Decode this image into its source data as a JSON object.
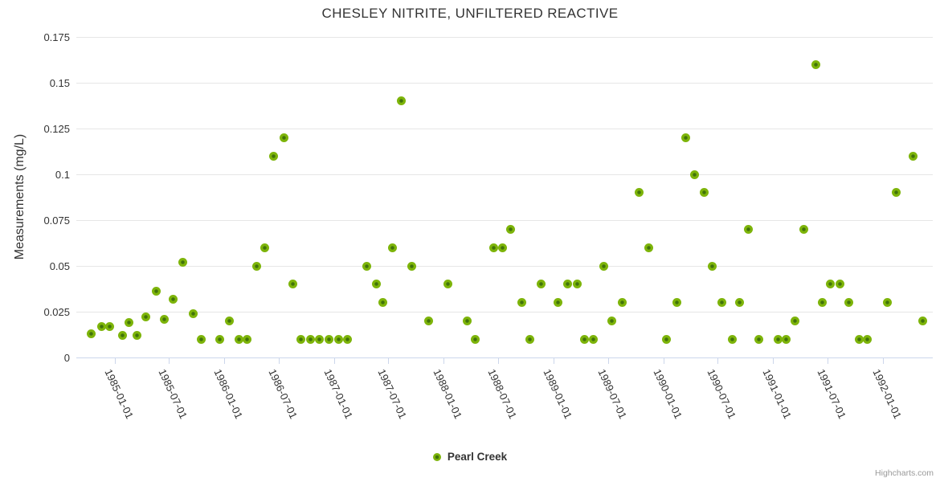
{
  "title": "CHESLEY NITRITE, UNFILTERED REACTIVE",
  "legend": {
    "label": "Pearl Creek"
  },
  "credits": "Highcharts.com",
  "y_axis": {
    "title": "Measurements (mg/L)",
    "tick_values": [
      0,
      0.025,
      0.05,
      0.075,
      0.1,
      0.125,
      0.15,
      0.175
    ],
    "tick_labels": [
      "0",
      "0.025",
      "0.05",
      "0.075",
      "0.1",
      "0.125",
      "0.15",
      "0.175"
    ]
  },
  "x_axis": {
    "tick_labels": [
      "1985-01-01",
      "1985-07-01",
      "1986-01-01",
      "1986-07-01",
      "1987-01-01",
      "1987-07-01",
      "1988-01-01",
      "1988-07-01",
      "1989-01-01",
      "1989-07-01",
      "1990-01-01",
      "1990-07-01",
      "1991-01-01",
      "1991-07-01",
      "1992-01-01"
    ]
  },
  "colors": {
    "marker_outer": "#7db40a",
    "marker_inner": "#41730a",
    "gridline": "#e6e6e6",
    "axis_line": "#ccd6eb",
    "title_text": "#333333",
    "credits_text": "#999999"
  },
  "chart_data": {
    "type": "scatter",
    "title": "CHESLEY NITRITE, UNFILTERED REACTIVE",
    "xlabel": "",
    "ylabel": "Measurements (mg/L)",
    "ylim": [
      0,
      0.175
    ],
    "xlim": [
      "1984-08-27",
      "1992-06-13"
    ],
    "x_ticks": [
      "1985-01-01",
      "1985-07-01",
      "1986-01-01",
      "1986-07-01",
      "1987-01-01",
      "1987-07-01",
      "1988-01-01",
      "1988-07-01",
      "1989-01-01",
      "1989-07-01",
      "1990-01-01",
      "1990-07-01",
      "1991-01-01",
      "1991-07-01",
      "1992-01-01"
    ],
    "y_ticks": [
      0,
      0.025,
      0.05,
      0.075,
      0.1,
      0.125,
      0.15,
      0.175
    ],
    "grid": true,
    "legend_position": "bottom",
    "series": [
      {
        "name": "Pearl Creek",
        "points": [
          [
            "1984-10-16",
            0.013
          ],
          [
            "1984-11-18",
            0.017
          ],
          [
            "1984-12-16",
            0.017
          ],
          [
            "1985-01-28",
            0.012
          ],
          [
            "1985-02-19",
            0.019
          ],
          [
            "1985-03-17",
            0.012
          ],
          [
            "1985-04-15",
            0.022
          ],
          [
            "1985-05-21",
            0.036
          ],
          [
            "1985-06-16",
            0.021
          ],
          [
            "1985-07-14",
            0.032
          ],
          [
            "1985-08-17",
            0.052
          ],
          [
            "1985-09-21",
            0.024
          ],
          [
            "1985-10-18",
            0.01
          ],
          [
            "1985-12-18",
            0.01
          ],
          [
            "1986-01-18",
            0.02
          ],
          [
            "1986-02-19",
            0.01
          ],
          [
            "1986-03-18",
            0.01
          ],
          [
            "1986-04-18",
            0.05
          ],
          [
            "1986-05-16",
            0.06
          ],
          [
            "1986-06-14",
            0.11
          ],
          [
            "1986-07-18",
            0.12
          ],
          [
            "1986-08-17",
            0.04
          ],
          [
            "1986-09-12",
            0.01
          ],
          [
            "1986-10-15",
            0.01
          ],
          [
            "1986-11-13",
            0.01
          ],
          [
            "1986-12-16",
            0.01
          ],
          [
            "1987-01-16",
            0.01
          ],
          [
            "1987-02-14",
            0.01
          ],
          [
            "1987-04-20",
            0.05
          ],
          [
            "1987-05-23",
            0.04
          ],
          [
            "1987-06-13",
            0.03
          ],
          [
            "1987-07-16",
            0.06
          ],
          [
            "1987-08-14",
            0.14
          ],
          [
            "1987-09-17",
            0.05
          ],
          [
            "1987-11-13",
            0.02
          ],
          [
            "1988-01-15",
            0.04
          ],
          [
            "1988-03-19",
            0.02
          ],
          [
            "1988-04-15",
            0.01
          ],
          [
            "1988-06-16",
            0.06
          ],
          [
            "1988-07-14",
            0.06
          ],
          [
            "1988-08-11",
            0.07
          ],
          [
            "1988-09-16",
            0.03
          ],
          [
            "1988-10-13",
            0.01
          ],
          [
            "1988-11-20",
            0.04
          ],
          [
            "1989-01-15",
            0.03
          ],
          [
            "1989-02-18",
            0.04
          ],
          [
            "1989-03-20",
            0.04
          ],
          [
            "1989-04-13",
            0.01
          ],
          [
            "1989-05-13",
            0.01
          ],
          [
            "1989-06-17",
            0.05
          ],
          [
            "1989-07-15",
            0.02
          ],
          [
            "1989-08-18",
            0.03
          ],
          [
            "1989-10-13",
            0.09
          ],
          [
            "1989-11-15",
            0.06
          ],
          [
            "1990-01-11",
            0.01
          ],
          [
            "1990-02-14",
            0.03
          ],
          [
            "1990-03-16",
            0.12
          ],
          [
            "1990-04-14",
            0.1
          ],
          [
            "1990-05-17",
            0.09
          ],
          [
            "1990-06-13",
            0.05
          ],
          [
            "1990-07-16",
            0.03
          ],
          [
            "1990-08-18",
            0.01
          ],
          [
            "1990-09-12",
            0.03
          ],
          [
            "1990-10-11",
            0.07
          ],
          [
            "1990-11-15",
            0.01
          ],
          [
            "1991-01-18",
            0.01
          ],
          [
            "1991-02-14",
            0.01
          ],
          [
            "1991-03-15",
            0.02
          ],
          [
            "1991-04-14",
            0.07
          ],
          [
            "1991-05-23",
            0.16
          ],
          [
            "1991-06-14",
            0.03
          ],
          [
            "1991-07-12",
            0.04
          ],
          [
            "1991-08-12",
            0.04
          ],
          [
            "1991-09-11",
            0.03
          ],
          [
            "1991-10-15",
            0.01
          ],
          [
            "1991-11-12",
            0.01
          ],
          [
            "1992-01-17",
            0.03
          ],
          [
            "1992-02-14",
            0.09
          ],
          [
            "1992-04-11",
            0.11
          ],
          [
            "1992-05-13",
            0.02
          ]
        ]
      }
    ]
  }
}
